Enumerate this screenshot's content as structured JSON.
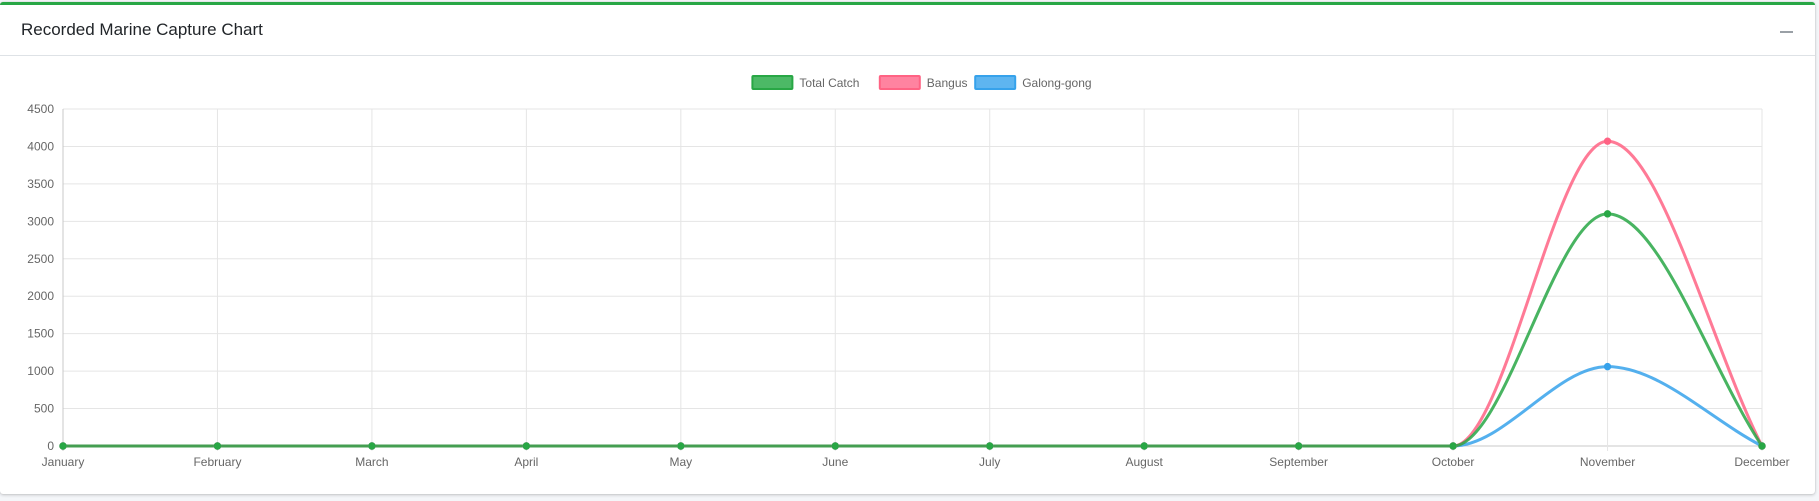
{
  "card": {
    "title": "Recorded Marine Capture Chart"
  },
  "colors": {
    "card_border": "#28a745",
    "grid": "#e5e5e5",
    "axis_text": "#666666"
  },
  "chart_data": {
    "type": "line",
    "title": "",
    "xlabel": "",
    "ylabel": "",
    "categories": [
      "January",
      "February",
      "March",
      "April",
      "May",
      "June",
      "July",
      "August",
      "September",
      "October",
      "November",
      "December"
    ],
    "ylim": [
      0,
      4500
    ],
    "yticks": [
      0,
      500,
      1000,
      1500,
      2000,
      2500,
      3000,
      3500,
      4000,
      4500
    ],
    "grid": true,
    "legend_position": "top-center",
    "series": [
      {
        "name": "Total Catch",
        "color": "#28a745",
        "fill": "#4cb966",
        "values": [
          0,
          0,
          0,
          0,
          0,
          0,
          0,
          0,
          0,
          0,
          3100,
          0
        ]
      },
      {
        "name": "Bangus",
        "color": "#ff6384",
        "fill": "#ff83a0",
        "values": [
          0,
          0,
          0,
          0,
          0,
          0,
          0,
          0,
          0,
          0,
          4070,
          0
        ]
      },
      {
        "name": "Galong-gong",
        "color": "#36a2eb",
        "fill": "#5eb5f0",
        "values": [
          0,
          0,
          0,
          0,
          0,
          0,
          0,
          0,
          0,
          0,
          1060,
          0
        ]
      }
    ]
  }
}
